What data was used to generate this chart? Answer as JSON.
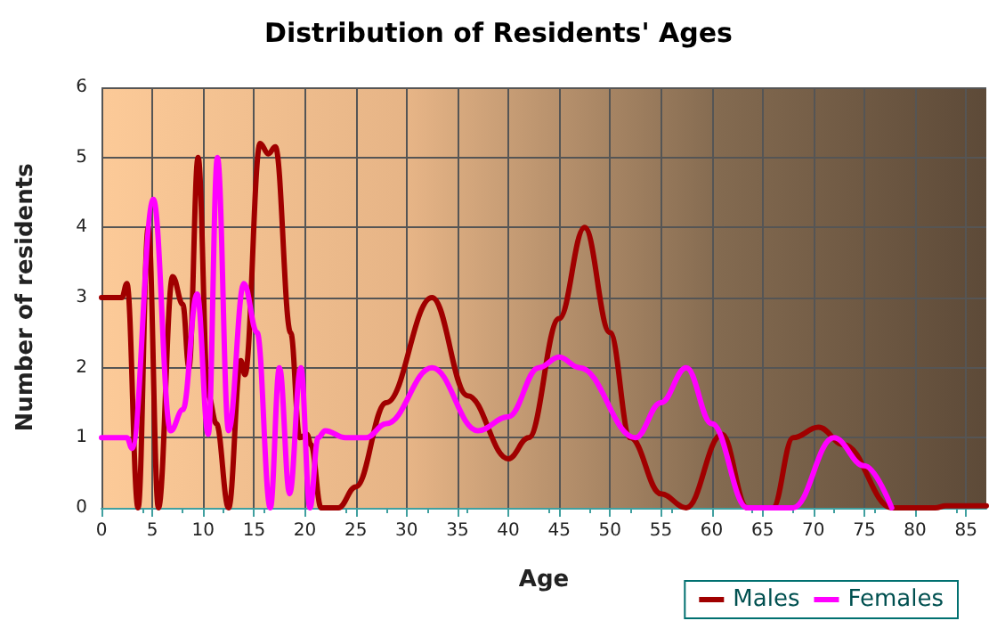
{
  "chart_data": {
    "type": "line",
    "title": "Distribution of Residents' Ages",
    "xlabel": "Age",
    "ylabel": "Number of residents",
    "series": [
      {
        "name": "Males",
        "color": "#a00000",
        "x": [
          0,
          2,
          2.5,
          3.6,
          4.6,
          5.6,
          7,
          8,
          8.6,
          9.5,
          10.5,
          11.3,
          12.5,
          13.7,
          14.1,
          15.6,
          16.4,
          17.1,
          18.6,
          19.5,
          20.2,
          20.6,
          21.6,
          23.3,
          25,
          28,
          32.5,
          36,
          40,
          42,
          45,
          47.5,
          50,
          52,
          55,
          57.5,
          61,
          63.5,
          66,
          68,
          70.5,
          73,
          77.7,
          82,
          83,
          87
        ],
        "values": [
          3,
          3,
          3.2,
          0,
          4,
          0,
          3.3,
          2.9,
          2,
          5,
          1.6,
          1.2,
          0,
          2.1,
          1.9,
          5.2,
          5.05,
          5.15,
          2.5,
          1,
          1.05,
          0.9,
          0,
          0,
          0.3,
          1.5,
          3,
          1.6,
          0.7,
          1,
          2.7,
          4,
          2.5,
          1,
          0.2,
          0,
          1.05,
          0,
          0,
          1,
          1.15,
          0.9,
          0,
          0,
          0.03,
          0.03
        ]
      },
      {
        "name": "Females",
        "color": "#ff00ff",
        "x": [
          0,
          2.5,
          3,
          5.1,
          6.8,
          8,
          9.4,
          10.5,
          11.4,
          12.5,
          14,
          15.3,
          16.6,
          17.5,
          18.5,
          19.6,
          20.5,
          21.3,
          22,
          24,
          26,
          28,
          32.5,
          37,
          40,
          43,
          45,
          47,
          52.5,
          55,
          57.5,
          60,
          63.5,
          65,
          68,
          72,
          75,
          77.7
        ],
        "values": [
          1,
          1,
          0.85,
          4.4,
          1.1,
          1.4,
          3.05,
          1.05,
          5,
          1.1,
          3.2,
          2.5,
          0,
          2,
          0.2,
          2,
          0,
          1,
          1.1,
          1,
          1,
          1.2,
          2,
          1.1,
          1.3,
          2,
          2.15,
          2,
          1,
          1.5,
          2,
          1.2,
          0,
          0,
          0,
          1,
          0.6,
          0
        ]
      }
    ],
    "xlim": [
      0,
      87
    ],
    "xticks": [
      0,
      5,
      10,
      15,
      20,
      25,
      30,
      35,
      40,
      45,
      50,
      55,
      60,
      65,
      70,
      75,
      80,
      85
    ],
    "ylim": [
      0,
      6
    ],
    "yticks": [
      0,
      1,
      2,
      3,
      4,
      5,
      6
    ],
    "grid": true,
    "legend": "bottom right",
    "marker": "none",
    "line_style": "solid"
  }
}
